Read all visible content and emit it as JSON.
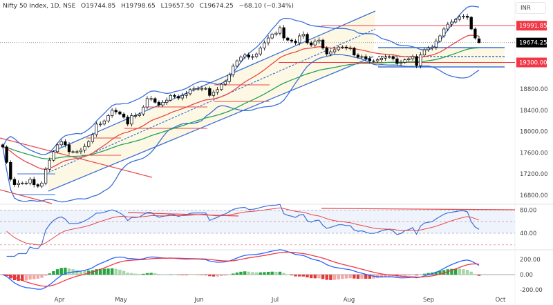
{
  "header": {
    "symbol": "Nifty 50 Index, 1D, NSE",
    "open": "O19744.85",
    "high": "H19798.65",
    "low": "L19657.50",
    "close": "C19674.25",
    "change": "−68.10 (−0.34%)"
  },
  "currency_button": "INR",
  "price_tags": {
    "resistance": "19991.85",
    "last": "19674.25",
    "support": "19300.00"
  },
  "colors": {
    "up": "#ffffff",
    "down": "#000000",
    "ema": "#e8464a",
    "sma": "#21a05a",
    "bands": "#3a6fd8",
    "tag_red": "#f23645",
    "macd": "#2962ff",
    "signal": "#f23645"
  },
  "chart_data": {
    "type": "candlestick",
    "title": "Nifty 50 Index, 1D, NSE",
    "last_ohlc": {
      "open": 19744.85,
      "high": 19798.65,
      "low": 19657.5,
      "close": 19674.25
    },
    "closes": [
      17710,
      17420,
      17100,
      17000,
      17030,
      17030,
      17030,
      17100,
      17000,
      16970,
      17030,
      17290,
      17460,
      17620,
      17750,
      17810,
      17750,
      17620,
      17620,
      17620,
      17650,
      17720,
      17810,
      17940,
      18140,
      18140,
      18200,
      18300,
      18400,
      18370,
      18330,
      18270,
      18140,
      18300,
      18300,
      18330,
      18460,
      18620,
      18620,
      18550,
      18500,
      18550,
      18590,
      18680,
      18660,
      18630,
      18680,
      18710,
      18790,
      18810,
      18810,
      18810,
      18810,
      18680,
      18740,
      18790,
      18890,
      18940,
      19070,
      19230,
      19330,
      19400,
      19440,
      19400,
      19410,
      19460,
      19570,
      19670,
      19760,
      19830,
      19850,
      19955,
      19760,
      19720,
      19700,
      19670,
      19800,
      19830,
      19670,
      19630,
      19700,
      19720,
      19570,
      19460,
      19500,
      19540,
      19590,
      19590,
      19570,
      19570,
      19440,
      19400,
      19410,
      19370,
      19330,
      19330,
      19350,
      19380,
      19400,
      19410,
      19370,
      19280,
      19300,
      19350,
      19370,
      19410,
      19240,
      19440,
      19540,
      19570,
      19590,
      19700,
      19800,
      19930,
      20020,
      20060,
      20110,
      20160,
      20170,
      20150,
      19930,
      19760,
      19674.25
    ],
    "price_axis": {
      "ticks": [
        "18800.00",
        "18400.00",
        "18000.00",
        "17600.00",
        "17200.00",
        "16800.00"
      ],
      "tick_values": [
        18800,
        18400,
        18000,
        17600,
        17200,
        16800
      ]
    },
    "x_axis": {
      "ticks": [
        "Apr",
        "May",
        "Jun",
        "Jul",
        "Aug",
        "Sep",
        "Oct"
      ]
    },
    "levels": [
      19991.85,
      19300.0
    ],
    "rsi": {
      "ticks": [
        "80.00",
        "40.00"
      ],
      "tick_values": [
        80,
        40
      ],
      "bands": [
        80,
        60,
        40,
        20
      ]
    },
    "macd": {
      "ticks": [
        "200.00",
        "0.00",
        "-200.00"
      ],
      "tick_values": [
        200,
        0,
        -200
      ]
    }
  }
}
